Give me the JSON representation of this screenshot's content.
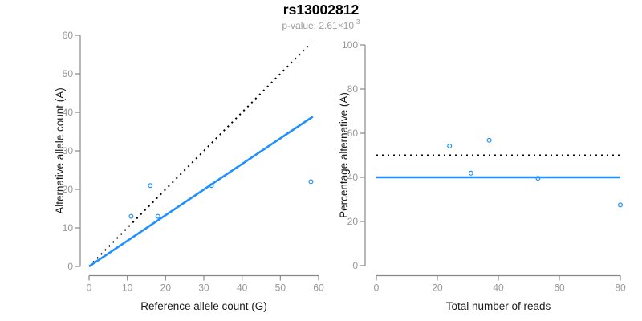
{
  "header": {
    "title": "rs13002812",
    "subtitle_prefix": "p-value: 2.61×10",
    "subtitle_exponent": "-3"
  },
  "colors": {
    "accent_blue": "#1E90FF",
    "dotted_black": "#000000",
    "axis_line": "#888888",
    "tick_label": "#969696",
    "axis_title": "#1a1a1a",
    "title": "#000000",
    "subtitle": "#9b9b9b"
  },
  "chart_data": [
    {
      "type": "scatter",
      "name": "allele-counts",
      "xlabel": "Reference allele count (G)",
      "ylabel": "Alternative allele count (A)",
      "xlim": [
        0,
        60
      ],
      "ylim": [
        0,
        60
      ],
      "xticks": [
        0,
        10,
        20,
        30,
        40,
        50,
        60
      ],
      "yticks": [
        0,
        10,
        20,
        30,
        40,
        50,
        60
      ],
      "grid": false,
      "legend": null,
      "points": [
        {
          "x": 11,
          "y": 13
        },
        {
          "x": 16,
          "y": 21
        },
        {
          "x": 18,
          "y": 13
        },
        {
          "x": 32,
          "y": 21
        },
        {
          "x": 58,
          "y": 22
        }
      ],
      "lines": [
        {
          "name": "identity-line",
          "style": "dotted",
          "color": "#000000",
          "x1": 0,
          "y1": 0,
          "x2": 58,
          "y2": 58
        },
        {
          "name": "fit-line",
          "style": "solid",
          "color": "#1E90FF",
          "x1": 0,
          "y1": 0,
          "x2": 58.5,
          "y2": 38.9
        }
      ]
    },
    {
      "type": "scatter",
      "name": "percentage-alternative",
      "xlabel": "Total number of reads",
      "ylabel": "Percentage alternative (A)",
      "xlim": [
        0,
        80
      ],
      "ylim": [
        0,
        100
      ],
      "xticks": [
        0,
        20,
        40,
        60,
        80
      ],
      "yticks": [
        0,
        20,
        40,
        60,
        80,
        100
      ],
      "grid": false,
      "legend": null,
      "points": [
        {
          "x": 24,
          "y": 54.2
        },
        {
          "x": 31,
          "y": 41.9
        },
        {
          "x": 37,
          "y": 56.8
        },
        {
          "x": 53,
          "y": 39.6
        },
        {
          "x": 80,
          "y": 27.5
        }
      ],
      "lines": [
        {
          "name": "expected-50pct-line",
          "style": "dotted",
          "color": "#000000",
          "x1": 0,
          "y1": 50,
          "x2": 80,
          "y2": 50
        },
        {
          "name": "mean-40pct-line",
          "style": "solid",
          "color": "#1E90FF",
          "x1": 0,
          "y1": 40,
          "x2": 80,
          "y2": 40
        }
      ]
    }
  ]
}
